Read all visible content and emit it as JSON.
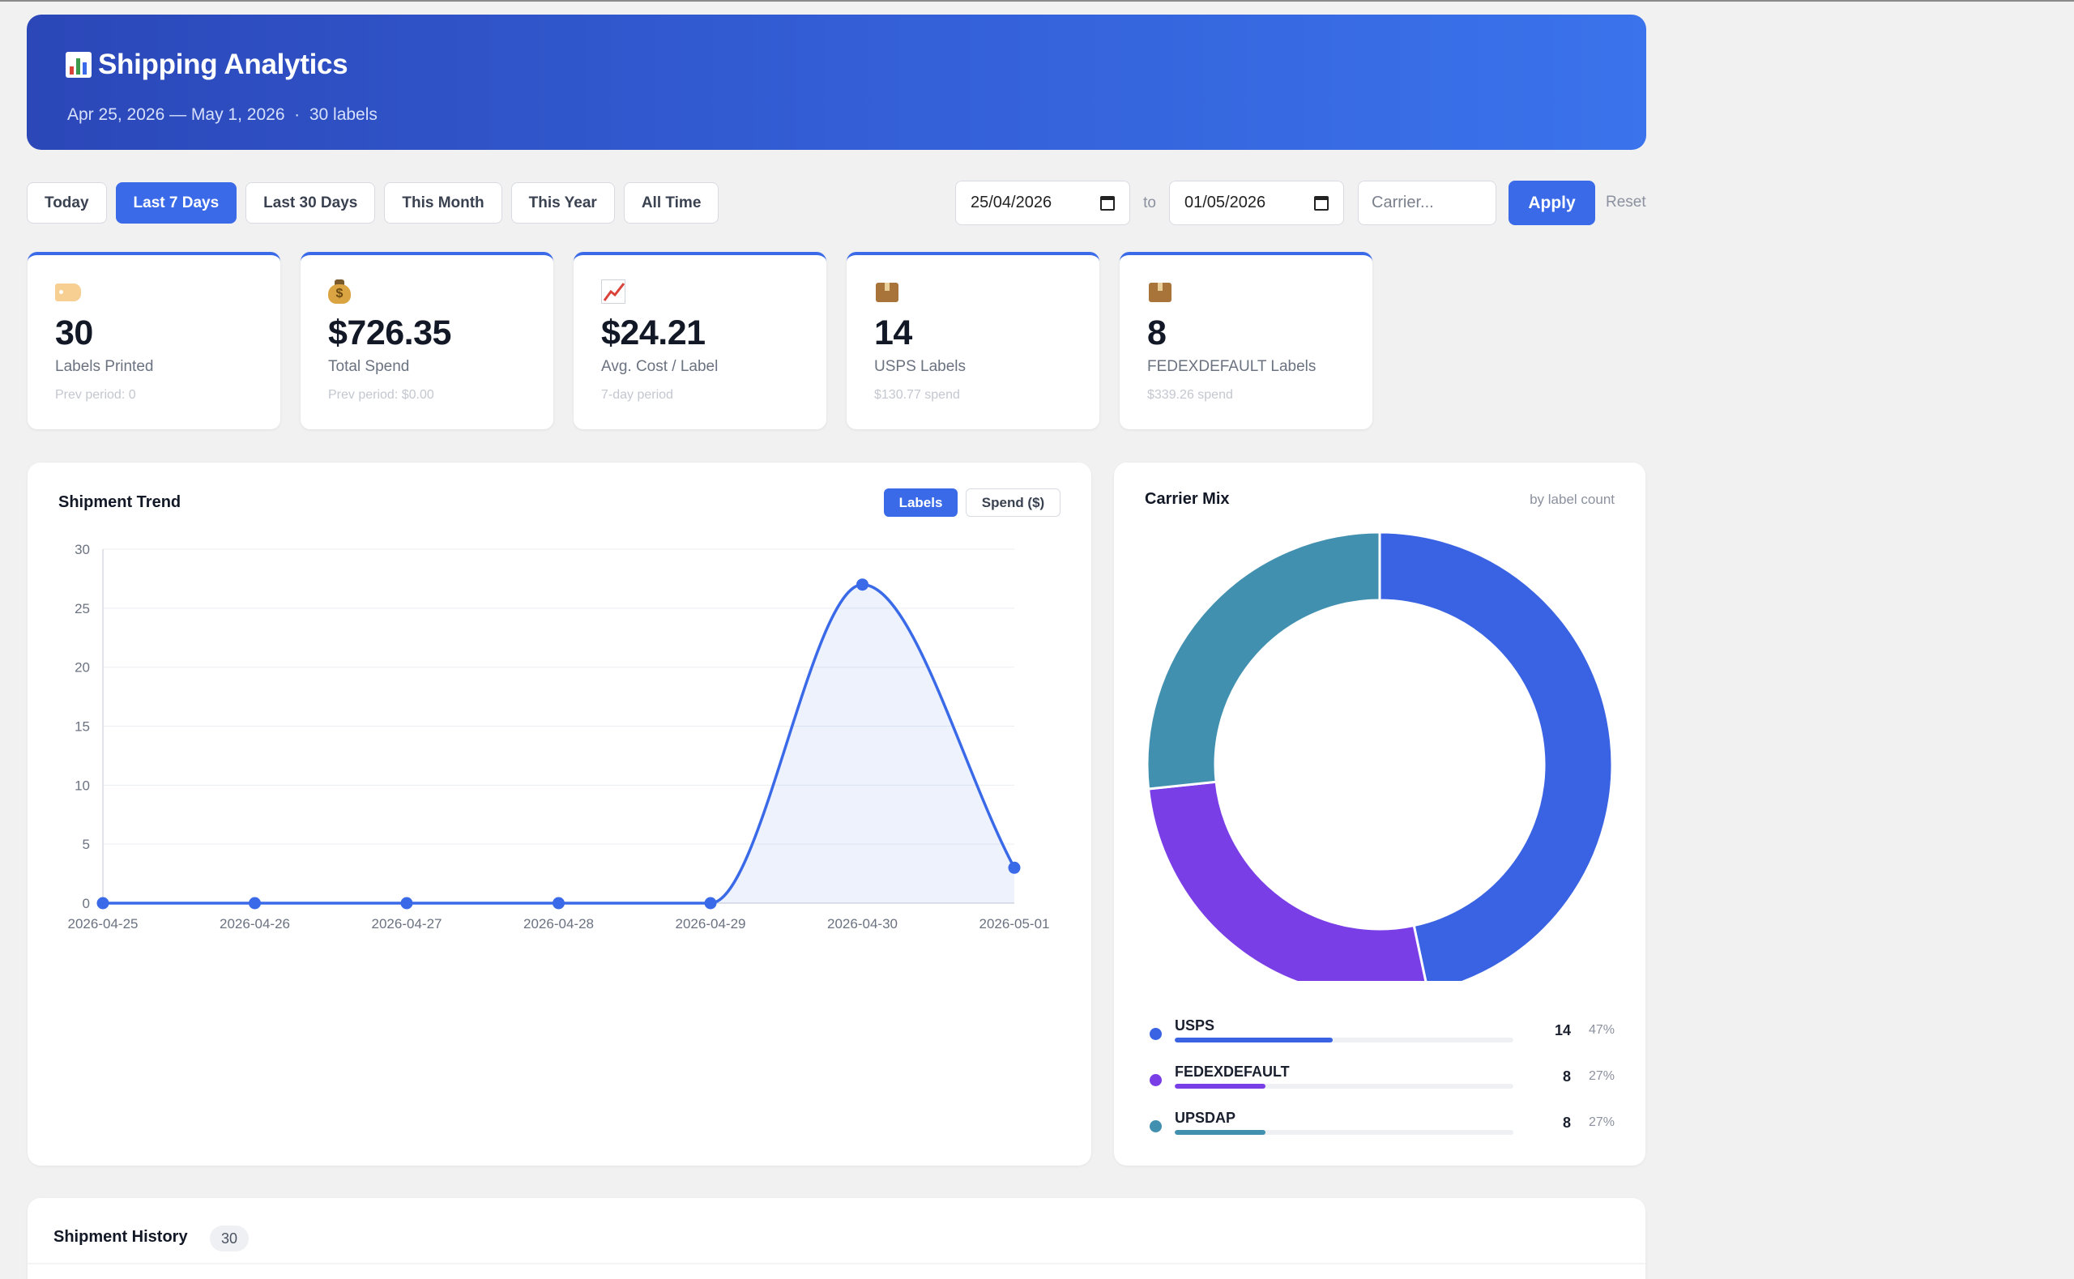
{
  "header": {
    "title": "Shipping Analytics",
    "subtitle": "Apr 25, 2026 — May 1, 2026  ·  30 labels"
  },
  "filters": {
    "presets": [
      "Today",
      "Last 7 Days",
      "Last 30 Days",
      "This Month",
      "This Year",
      "All Time"
    ],
    "active_preset": "Last 7 Days",
    "date_from": "25/04/2026",
    "date_to": "01/05/2026",
    "to_label": "to",
    "carrier_placeholder": "Carrier...",
    "apply_label": "Apply",
    "reset_label": "Reset"
  },
  "stats": [
    {
      "icon": "tag-icon",
      "value": "30",
      "label": "Labels Printed",
      "sub": "Prev period: 0"
    },
    {
      "icon": "money-bag-icon",
      "value": "$726.35",
      "label": "Total Spend",
      "sub": "Prev period: $0.00"
    },
    {
      "icon": "chart-increasing-icon",
      "value": "$24.21",
      "label": "Avg. Cost / Label",
      "sub": "7-day period"
    },
    {
      "icon": "package-icon",
      "value": "14",
      "label": "USPS Labels",
      "sub": "$130.77 spend"
    },
    {
      "icon": "package-icon",
      "value": "8",
      "label": "FEDEXDEFAULT Labels",
      "sub": "$339.26 spend"
    }
  ],
  "trend": {
    "title": "Shipment Trend",
    "toggle_labels": "Labels",
    "toggle_spend": "Spend ($)",
    "active_toggle": "Labels"
  },
  "carrier_mix": {
    "title": "Carrier Mix",
    "subtitle": "by label count"
  },
  "history": {
    "title": "Shipment History",
    "count": "30"
  },
  "chart_data": [
    {
      "type": "line",
      "x": [
        "2026-04-25",
        "2026-04-26",
        "2026-04-27",
        "2026-04-28",
        "2026-04-29",
        "2026-04-30",
        "2026-05-01"
      ],
      "values": [
        0,
        0,
        0,
        0,
        0,
        27,
        3
      ],
      "yticks": [
        0,
        5,
        10,
        15,
        20,
        25,
        30
      ],
      "ylim": [
        0,
        30
      ],
      "grid": true,
      "smooth": true,
      "area_fill": true,
      "color": "#3a6ae8"
    },
    {
      "type": "pie",
      "donut": true,
      "categories": [
        "USPS",
        "FEDEXDEFAULT",
        "UPSDAP"
      ],
      "values": [
        14,
        8,
        8
      ],
      "percent_labels": [
        "47%",
        "27%",
        "27%"
      ],
      "colors": [
        "#3a63e3",
        "#7a3ee6",
        "#4290af"
      ]
    }
  ]
}
